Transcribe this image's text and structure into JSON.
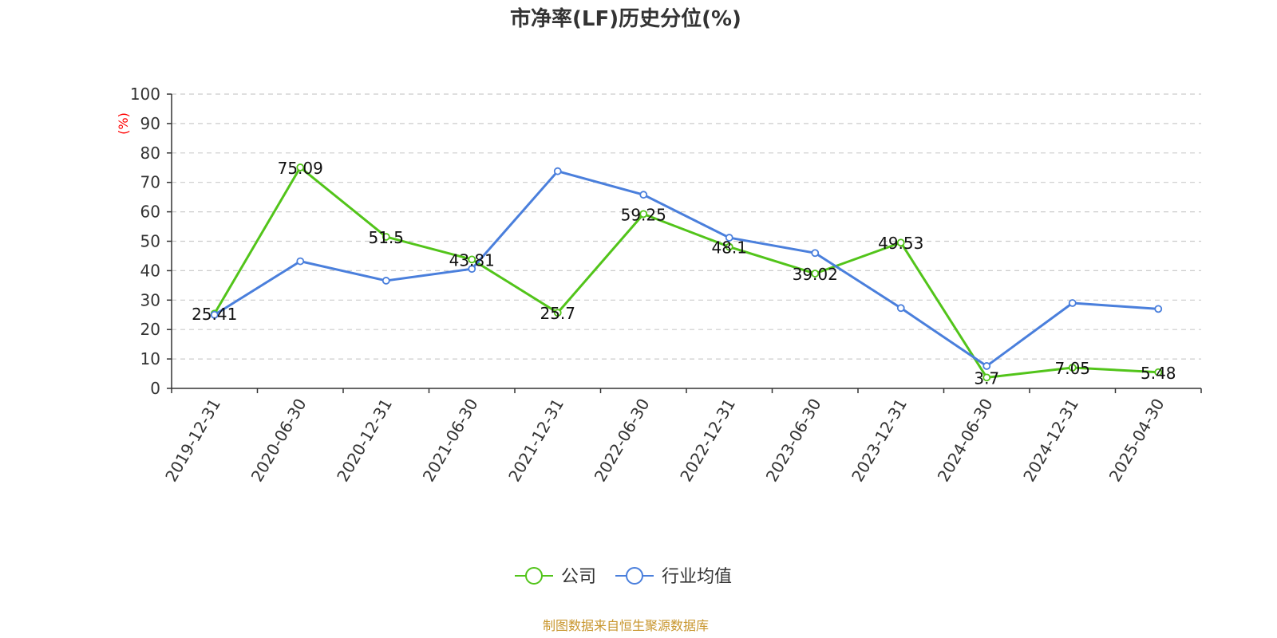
{
  "chart_data": {
    "type": "line",
    "title": "市净率(LF)历史分位(%)",
    "ylabel": "(%)",
    "ylim": [
      0,
      100
    ],
    "yticks": [
      0,
      10,
      20,
      30,
      40,
      50,
      60,
      70,
      80,
      90,
      100
    ],
    "grid": true,
    "legend_position": "bottom-center",
    "categories": [
      "2019-12-31",
      "2020-06-30",
      "2020-12-31",
      "2021-06-30",
      "2021-12-31",
      "2022-06-30",
      "2022-12-31",
      "2023-06-30",
      "2023-12-31",
      "2024-06-30",
      "2024-12-31",
      "2025-04-30"
    ],
    "series": [
      {
        "name": "公司",
        "color": "#52c41a",
        "values": [
          25.41,
          75.09,
          51.5,
          43.81,
          25.7,
          59.25,
          48.1,
          39.02,
          49.53,
          3.7,
          7.05,
          5.48
        ],
        "labels": [
          "25.41",
          "75.09",
          "51.5",
          "43.81",
          "25.7",
          "59.25",
          "48.1",
          "39.02",
          "49.53",
          "3.7",
          "7.05",
          "5.48"
        ]
      },
      {
        "name": "行业均值",
        "color": "#4a7fdc",
        "values": [
          25.0,
          43.2,
          36.6,
          40.6,
          73.8,
          65.8,
          51.2,
          46.0,
          27.3,
          7.6,
          29.0,
          27.0
        ]
      }
    ]
  },
  "source_note": "制图数据来自恒生聚源数据库"
}
